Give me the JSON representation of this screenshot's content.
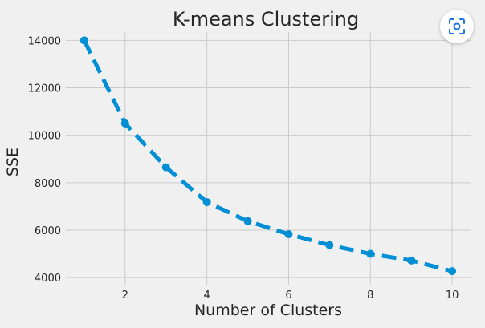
{
  "chart_data": {
    "type": "line",
    "title": "K-means Clustering",
    "xlabel": "Number of Clusters",
    "ylabel": "SSE",
    "x": [
      1,
      2,
      3,
      4,
      5,
      6,
      7,
      8,
      9,
      10
    ],
    "series": [
      {
        "values": [
          14000,
          10500,
          8650,
          7180,
          6380,
          5830,
          5370,
          5000,
          4720,
          4270
        ],
        "color": "#008fd5",
        "style": "dashed",
        "markers": true
      }
    ],
    "xlim": [
      0.55,
      10.45
    ],
    "ylim": [
      3700,
      14350
    ],
    "xticks": [
      2,
      4,
      6,
      8,
      10
    ],
    "yticks": [
      4000,
      6000,
      8000,
      10000,
      12000,
      14000
    ],
    "grid": true,
    "style_theme": "fivethirtyeight"
  },
  "overlay": {
    "lens_icon": "lens-scan-icon"
  }
}
